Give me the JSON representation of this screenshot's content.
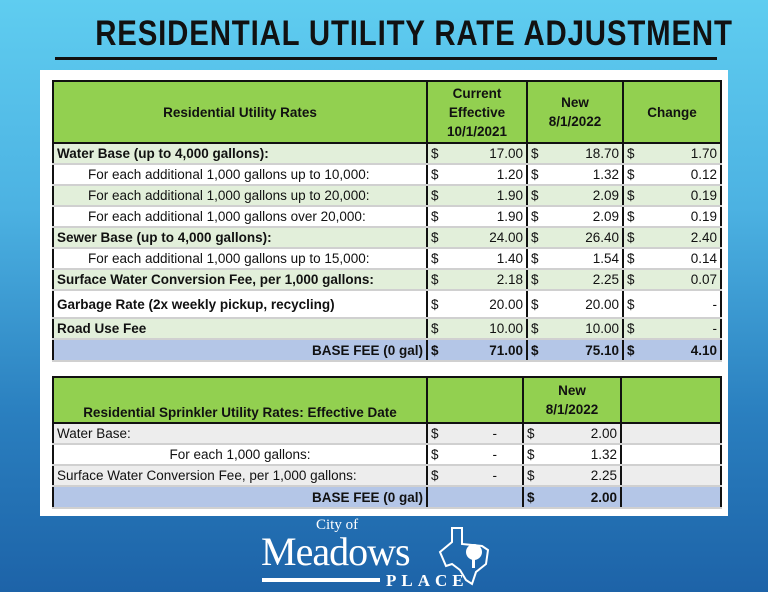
{
  "title": "RESIDENTIAL UTILITY RATE ADJUSTMENT",
  "table1": {
    "headers": [
      "Residential Utility Rates",
      "Current Effective 10/1/2021",
      "New 8/1/2022",
      "Change"
    ],
    "header_lines": {
      "current": [
        "Current",
        "Effective",
        "10/1/2021"
      ],
      "new": [
        "New",
        "8/1/2022"
      ]
    },
    "rows": [
      {
        "label": "Water Base (up to 4,000 gallons):",
        "current": "17.00",
        "new": "18.70",
        "change": "1.70"
      },
      {
        "label": "For each additional 1,000 gallons up to 10,000:",
        "current": "1.20",
        "new": "1.32",
        "change": "0.12"
      },
      {
        "label": "For each additional 1,000 gallons up to 20,000:",
        "current": "1.90",
        "new": "2.09",
        "change": "0.19"
      },
      {
        "label": "For each additional 1,000 gallons over 20,000:",
        "current": "1.90",
        "new": "2.09",
        "change": "0.19"
      },
      {
        "label": "Sewer Base (up to 4,000 gallons):",
        "current": "24.00",
        "new": "26.40",
        "change": "2.40"
      },
      {
        "label": "For each additional 1,000 gallons up to 15,000:",
        "current": "1.40",
        "new": "1.54",
        "change": "0.14"
      },
      {
        "label": "Surface Water Conversion Fee, per 1,000 gallons:",
        "current": "2.18",
        "new": "2.25",
        "change": "0.07"
      },
      {
        "label": "Garbage Rate (2x weekly pickup, recycling)",
        "current": "20.00",
        "new": "20.00",
        "change": "-"
      },
      {
        "label": "Road Use Fee",
        "current": "10.00",
        "new": "10.00",
        "change": "-"
      }
    ],
    "total": {
      "label": "BASE FEE (0 gal)",
      "current": "71.00",
      "new": "75.10",
      "change": "4.10"
    }
  },
  "table2": {
    "header": "Residential Sprinkler Utility Rates: Effective Date",
    "header_new": [
      "New",
      "8/1/2022"
    ],
    "rows": [
      {
        "label": "Water Base:",
        "current": "-",
        "new": "2.00"
      },
      {
        "label": "For each 1,000 gallons:",
        "current": "-",
        "new": "1.32"
      },
      {
        "label": "Surface Water Conversion Fee, per 1,000 gallons:",
        "current": "-",
        "new": "2.25"
      }
    ],
    "total": {
      "label": "BASE FEE (0 gal)",
      "new": "2.00"
    }
  },
  "currency": "$",
  "logo": {
    "city_of": "City of",
    "name": "Meadows",
    "place": "PLACE"
  },
  "colors": {
    "header": "#92d050",
    "row_green": "#e2efda",
    "total": "#b4c6e7"
  }
}
